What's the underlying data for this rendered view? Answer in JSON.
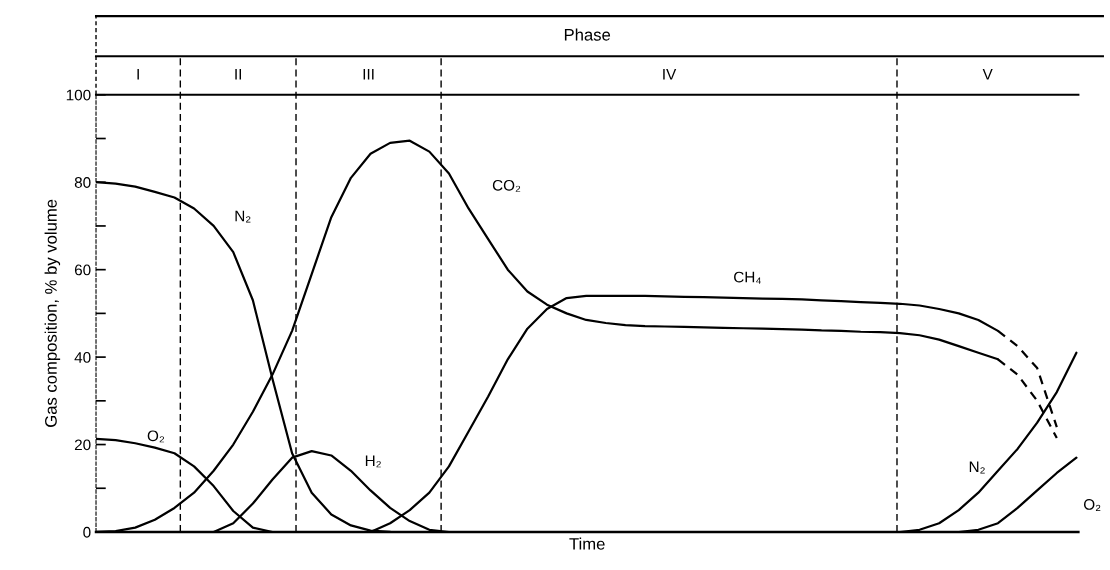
{
  "chart_data": {
    "type": "line",
    "title": "Phase",
    "xlabel": "Time",
    "ylabel": "Gas composition, % by volume",
    "categories": [
      null,
      null,
      null,
      null,
      null,
      null,
      null,
      null,
      null,
      null,
      null,
      null,
      null,
      null,
      null,
      null,
      null,
      null,
      null,
      null,
      null,
      null,
      null,
      null,
      null,
      null,
      null,
      null,
      null,
      null,
      null,
      null,
      null,
      null,
      null,
      null,
      null,
      null,
      null,
      null,
      null,
      null,
      null,
      null,
      null,
      null,
      null,
      null,
      null,
      null,
      null
    ],
    "ylim": [
      0,
      100
    ],
    "yticks": [
      0,
      {
        "value": 10,
        "label": null
      },
      20,
      {
        "value": 30,
        "label": null
      },
      40,
      {
        "value": 50,
        "label": null
      },
      60,
      {
        "value": 70,
        "label": null
      },
      80,
      {
        "value": 90,
        "label": null
      },
      100
    ],
    "grid": false,
    "legend": false,
    "marker": "none",
    "annotations": [
      "I",
      "II",
      "III",
      "IV",
      "V"
    ],
    "series": [
      {
        "name": "N₂",
        "color": "#000000",
        "line_style": "solid",
        "values": [
          80,
          79.7,
          79,
          77.8,
          76.5,
          74,
          70,
          64,
          53,
          35,
          18,
          9,
          4,
          1.5,
          0.3,
          0,
          null,
          null,
          null,
          null,
          null,
          null,
          null,
          null,
          null,
          null,
          null,
          null,
          null,
          null,
          null,
          null,
          null,
          null,
          null,
          null,
          null,
          null,
          null,
          null,
          null,
          null,
          null,
          null,
          null,
          null,
          null,
          null,
          null,
          null,
          null
        ]
      },
      {
        "name": "N₂",
        "color": "#000000",
        "line_style": "solid",
        "values": [
          null,
          null,
          null,
          null,
          null,
          null,
          null,
          null,
          null,
          null,
          null,
          null,
          null,
          null,
          null,
          null,
          null,
          null,
          null,
          null,
          null,
          null,
          null,
          null,
          null,
          null,
          null,
          null,
          null,
          null,
          null,
          null,
          null,
          null,
          null,
          null,
          null,
          null,
          null,
          null,
          null,
          0,
          0.5,
          2,
          5,
          9,
          14,
          19,
          25,
          32,
          41
        ]
      },
      {
        "name": "O₂",
        "color": "#000000",
        "line_style": "solid",
        "values": [
          21.3,
          21,
          20.3,
          19.3,
          18,
          15,
          10.5,
          4.8,
          1,
          0,
          null,
          null,
          null,
          null,
          null,
          null,
          null,
          null,
          null,
          null,
          null,
          null,
          null,
          null,
          null,
          null,
          null,
          null,
          null,
          null,
          null,
          null,
          null,
          null,
          null,
          null,
          null,
          null,
          null,
          null,
          null,
          null,
          null,
          null,
          null,
          null,
          null,
          null,
          null,
          null,
          null
        ]
      },
      {
        "name": "O₂",
        "color": "#000000",
        "line_style": "solid",
        "values": [
          null,
          null,
          null,
          null,
          null,
          null,
          null,
          null,
          null,
          null,
          null,
          null,
          null,
          null,
          null,
          null,
          null,
          null,
          null,
          null,
          null,
          null,
          null,
          null,
          null,
          null,
          null,
          null,
          null,
          null,
          null,
          null,
          null,
          null,
          null,
          null,
          null,
          null,
          null,
          null,
          null,
          null,
          null,
          null,
          0,
          0.5,
          2,
          5.5,
          9.5,
          13.5,
          17
        ]
      },
      {
        "name": "CO₂",
        "color": "#000000",
        "line_style": "solid",
        "values": [
          0,
          0.2,
          1,
          2.8,
          5.5,
          9,
          14,
          20,
          27.5,
          36,
          46,
          59,
          72,
          81,
          86.5,
          89,
          89.5,
          87,
          82,
          74,
          67,
          60,
          55,
          52,
          50,
          48.5,
          47.8,
          47.3,
          47.1,
          47,
          46.9,
          46.8,
          46.7,
          46.6,
          46.5,
          46.4,
          46.3,
          46.1,
          46,
          45.8,
          45.7,
          45.5,
          45,
          44,
          42.5,
          41,
          39.5,
          null,
          null,
          null,
          null
        ]
      },
      {
        "color": "#000000",
        "line_style": "dashed",
        "values": [
          null,
          null,
          null,
          null,
          null,
          null,
          null,
          null,
          null,
          null,
          null,
          null,
          null,
          null,
          null,
          null,
          null,
          null,
          null,
          null,
          null,
          null,
          null,
          null,
          null,
          null,
          null,
          null,
          null,
          null,
          null,
          null,
          null,
          null,
          null,
          null,
          null,
          null,
          null,
          null,
          null,
          null,
          null,
          null,
          null,
          null,
          39.5,
          36,
          30,
          21.5,
          null
        ]
      },
      {
        "name": "H₂",
        "color": "#000000",
        "line_style": "solid",
        "values": [
          null,
          null,
          null,
          null,
          null,
          null,
          0,
          2,
          6.5,
          12,
          17,
          18.5,
          17.5,
          14,
          9.5,
          5.5,
          2.5,
          0.5,
          0,
          null,
          null,
          null,
          null,
          null,
          null,
          null,
          null,
          null,
          null,
          null,
          null,
          null,
          null,
          null,
          null,
          null,
          null,
          null,
          null,
          null,
          null,
          null,
          null,
          null,
          null,
          null,
          null,
          null,
          null,
          null,
          null
        ]
      },
      {
        "name": "CH₄",
        "color": "#000000",
        "line_style": "solid",
        "values": [
          null,
          null,
          null,
          null,
          null,
          null,
          null,
          null,
          null,
          null,
          null,
          null,
          null,
          null,
          0,
          2,
          5,
          9,
          15,
          23,
          31,
          39.5,
          46.5,
          51,
          53.5,
          54,
          54,
          54,
          54,
          53.9,
          53.8,
          53.7,
          53.6,
          53.5,
          53.4,
          53.3,
          53.2,
          53,
          52.8,
          52.6,
          52.4,
          52.2,
          51.8,
          51,
          50,
          48.5,
          46,
          null,
          null,
          null,
          null
        ]
      },
      {
        "color": "#000000",
        "line_style": "dashed",
        "values": [
          null,
          null,
          null,
          null,
          null,
          null,
          null,
          null,
          null,
          null,
          null,
          null,
          null,
          null,
          null,
          null,
          null,
          null,
          null,
          null,
          null,
          null,
          null,
          null,
          null,
          null,
          null,
          null,
          null,
          null,
          null,
          null,
          null,
          null,
          null,
          null,
          null,
          null,
          null,
          null,
          null,
          null,
          null,
          null,
          null,
          null,
          46,
          42.5,
          37.5,
          24,
          null
        ]
      }
    ]
  }
}
